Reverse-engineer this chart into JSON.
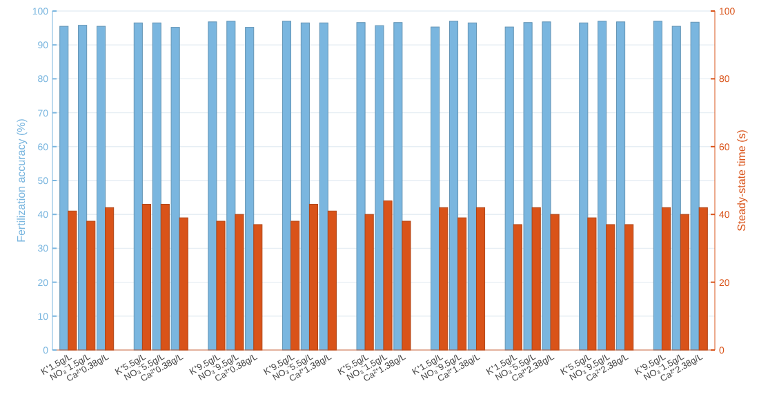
{
  "chart_data": {
    "type": "bar",
    "ylabel": "Fertilization accuracy (%)",
    "y2label": "Steady-state time (s)",
    "categories": [
      "K⁺1.5g/L",
      "NO₃⁻1.5g/L",
      "Ca²⁺0.38g/L",
      null,
      "K⁺5.5g/L",
      "NO₃⁻5.5g/L",
      "Ca²⁺0.38g/L",
      null,
      "K⁺9.5g/L",
      "NO₃⁻9.5g/L",
      "Ca²⁺0.38g/L",
      null,
      "K⁺9.5g/L",
      "NO₃⁻5.5g/L",
      "Ca²⁺1.38g/L",
      null,
      "K⁺5.5g/L",
      "NO₃⁻1.5g/L",
      "Ca²⁺1.38g/L",
      null,
      "K⁺1.5g/L",
      "NO₃⁻9.5g/L",
      "Ca²⁺1.38g/L",
      null,
      "K⁺1.5g/L",
      "NO₃⁻5.5g/L",
      "Ca²⁺2.38g/L",
      null,
      "K⁺5.5g/L",
      "NO₃⁻9.5g/L",
      "Ca²⁺2.38g/L",
      null,
      "K⁺9.5g/L",
      "NO₃⁻1.5g/L",
      "Ca²⁺2.38g/L"
    ],
    "series": [
      {
        "color": "#7ab6df",
        "values": [
          95.5,
          95.8,
          95.5,
          null,
          96.5,
          96.5,
          95.2,
          null,
          96.8,
          97,
          95.2,
          null,
          97,
          96.5,
          96.5,
          null,
          96.6,
          95.7,
          96.6,
          null,
          95.3,
          97,
          96.5,
          null,
          95.3,
          96.6,
          96.8,
          null,
          96.5,
          97,
          96.8,
          null,
          97,
          95.5,
          96.7
        ]
      },
      {
        "color": "#d95319",
        "axis": "y2",
        "values": [
          41,
          38,
          42,
          null,
          43,
          43,
          39,
          null,
          38,
          40,
          37,
          null,
          38,
          43,
          41,
          null,
          40,
          44,
          38,
          null,
          42,
          39,
          42,
          null,
          37,
          42,
          40,
          null,
          39,
          37,
          37,
          null,
          42,
          40,
          42
        ]
      }
    ],
    "ylim": [
      0,
      100
    ],
    "yticks": [
      0,
      10,
      20,
      30,
      40,
      50,
      60,
      70,
      80,
      90,
      100
    ],
    "y2lim": [
      0,
      100
    ],
    "y2ticks": [
      0,
      20,
      40,
      60,
      80,
      100
    ],
    "grid": "y"
  }
}
